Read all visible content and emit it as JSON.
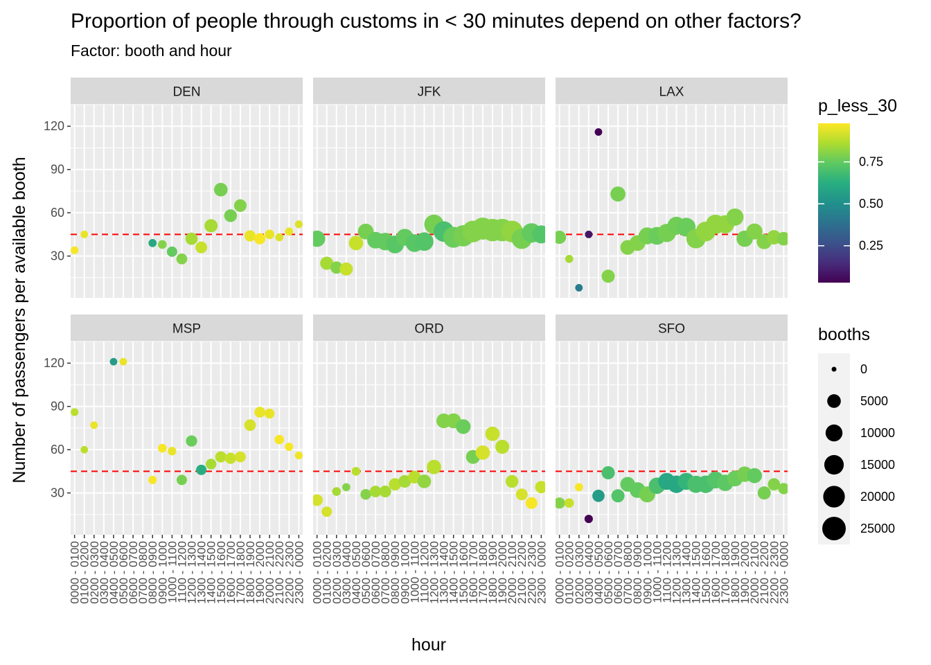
{
  "chart_data": {
    "type": "scatter",
    "title": "Proportion of people through customs in < 30 minutes depend on other factors?",
    "subtitle": "Factor: booth and hour",
    "xlabel": "hour",
    "ylabel": "Number of passengers per available booth",
    "ylim": [
      1,
      135
    ],
    "yticks": [
      30,
      60,
      90,
      120
    ],
    "reference_line": {
      "y": 45,
      "color": "#ff0000",
      "style": "dashed"
    },
    "categories": [
      "0000 - 0100",
      "0100 - 0200",
      "0200 - 0300",
      "0300 - 0400",
      "0400 - 0500",
      "0500 - 0600",
      "0600 - 0700",
      "0700 - 0800",
      "0800 - 0900",
      "0900 - 1000",
      "1000 - 1100",
      "1100 - 1200",
      "1200 - 1300",
      "1300 - 1400",
      "1400 - 1500",
      "1500 - 1600",
      "1600 - 1700",
      "1700 - 1800",
      "1800 - 1900",
      "1900 - 2000",
      "2000 - 2100",
      "2100 - 2200",
      "2200 - 2300",
      "2300 - 0000"
    ],
    "color_scale": {
      "name": "p_less_30",
      "palette": "viridis",
      "range": [
        0.03,
        0.98
      ],
      "breaks": [
        0.25,
        0.5,
        0.75
      ],
      "labels": [
        "0.25",
        "0.50",
        "0.75"
      ]
    },
    "size_scale": {
      "name": "booths",
      "breaks": [
        0,
        5000,
        10000,
        15000,
        20000,
        25000
      ],
      "labels": [
        "0",
        "5000",
        "10000",
        "15000",
        "20000",
        "25000"
      ]
    },
    "grid": true,
    "legend_position": "right",
    "panels": [
      {
        "airport": "DEN",
        "points": [
          [
            0,
            34,
            0.97,
            400
          ],
          [
            1,
            45,
            0.95,
            300
          ],
          [
            8,
            39,
            0.6,
            500
          ],
          [
            9,
            38,
            0.8,
            800
          ],
          [
            10,
            33,
            0.75,
            1800
          ],
          [
            11,
            28,
            0.8,
            2200
          ],
          [
            12,
            42,
            0.85,
            3500
          ],
          [
            13,
            36,
            0.9,
            3000
          ],
          [
            14,
            51,
            0.85,
            4500
          ],
          [
            15,
            76,
            0.78,
            5000
          ],
          [
            16,
            58,
            0.78,
            4000
          ],
          [
            17,
            65,
            0.8,
            3800
          ],
          [
            18,
            44,
            0.95,
            2500
          ],
          [
            19,
            42,
            0.97,
            2500
          ],
          [
            20,
            45,
            0.95,
            1200
          ],
          [
            21,
            43,
            0.93,
            500
          ],
          [
            22,
            47,
            0.95,
            500
          ],
          [
            23,
            52,
            0.93,
            400
          ]
        ]
      },
      {
        "airport": "JFK",
        "points": [
          [
            0,
            42,
            0.75,
            9000
          ],
          [
            1,
            25,
            0.85,
            4500
          ],
          [
            2,
            22,
            0.8,
            3500
          ],
          [
            3,
            21,
            0.9,
            4500
          ],
          [
            4,
            39,
            0.9,
            6000
          ],
          [
            5,
            47,
            0.78,
            8000
          ],
          [
            6,
            41,
            0.75,
            9500
          ],
          [
            7,
            40,
            0.75,
            11000
          ],
          [
            8,
            38,
            0.73,
            11500
          ],
          [
            9,
            43,
            0.75,
            10000
          ],
          [
            10,
            39,
            0.73,
            11500
          ],
          [
            11,
            40,
            0.72,
            13000
          ],
          [
            12,
            52,
            0.78,
            15000
          ],
          [
            13,
            47,
            0.7,
            17000
          ],
          [
            14,
            43,
            0.76,
            18000
          ],
          [
            15,
            44,
            0.78,
            19000
          ],
          [
            16,
            47,
            0.8,
            20000
          ],
          [
            17,
            49,
            0.8,
            21000
          ],
          [
            18,
            48,
            0.8,
            22000
          ],
          [
            19,
            48,
            0.8,
            22000
          ],
          [
            20,
            47,
            0.82,
            20000
          ],
          [
            21,
            42,
            0.78,
            17000
          ],
          [
            22,
            46,
            0.75,
            15000
          ],
          [
            23,
            45,
            0.72,
            12000
          ]
        ]
      },
      {
        "airport": "LAX",
        "points": [
          [
            0,
            43,
            0.78,
            4500
          ],
          [
            1,
            28,
            0.85,
            500
          ],
          [
            2,
            8,
            0.42,
            300
          ],
          [
            3,
            45,
            0.08,
            300
          ],
          [
            4,
            116,
            0.03,
            300
          ],
          [
            5,
            16,
            0.8,
            4500
          ],
          [
            6,
            73,
            0.78,
            7000
          ],
          [
            7,
            36,
            0.8,
            6500
          ],
          [
            8,
            39,
            0.8,
            8000
          ],
          [
            9,
            44,
            0.78,
            10000
          ],
          [
            10,
            44,
            0.76,
            11500
          ],
          [
            11,
            46,
            0.78,
            12500
          ],
          [
            12,
            51,
            0.77,
            12000
          ],
          [
            13,
            50,
            0.76,
            13500
          ],
          [
            14,
            42,
            0.8,
            14500
          ],
          [
            15,
            47,
            0.82,
            15500
          ],
          [
            16,
            52,
            0.82,
            14500
          ],
          [
            17,
            52,
            0.82,
            12000
          ],
          [
            18,
            57,
            0.8,
            10500
          ],
          [
            19,
            42,
            0.78,
            9000
          ],
          [
            20,
            47,
            0.8,
            8500
          ],
          [
            21,
            40,
            0.8,
            7000
          ],
          [
            22,
            43,
            0.82,
            6000
          ],
          [
            23,
            42,
            0.8,
            5000
          ]
        ]
      },
      {
        "airport": "MSP",
        "points": [
          [
            0,
            86,
            0.88,
            400
          ],
          [
            1,
            60,
            0.88,
            300
          ],
          [
            2,
            77,
            0.95,
            300
          ],
          [
            4,
            121,
            0.55,
            300
          ],
          [
            5,
            121,
            0.95,
            300
          ],
          [
            8,
            39,
            0.97,
            600
          ],
          [
            9,
            61,
            0.97,
            800
          ],
          [
            10,
            59,
            0.95,
            700
          ],
          [
            11,
            39,
            0.78,
            1800
          ],
          [
            12,
            66,
            0.76,
            2500
          ],
          [
            13,
            46,
            0.62,
            1800
          ],
          [
            14,
            50,
            0.85,
            2000
          ],
          [
            15,
            55,
            0.88,
            2500
          ],
          [
            16,
            54,
            0.9,
            2500
          ],
          [
            17,
            55,
            0.92,
            2200
          ],
          [
            18,
            77,
            0.92,
            2800
          ],
          [
            19,
            86,
            0.95,
            2200
          ],
          [
            20,
            85,
            0.95,
            1500
          ],
          [
            21,
            67,
            0.97,
            1200
          ],
          [
            22,
            62,
            0.97,
            600
          ],
          [
            23,
            56,
            0.96,
            400
          ]
        ]
      },
      {
        "airport": "ORD",
        "points": [
          [
            0,
            25,
            0.92,
            2800
          ],
          [
            1,
            17,
            0.92,
            1800
          ],
          [
            2,
            31,
            0.85,
            800
          ],
          [
            3,
            34,
            0.8,
            500
          ],
          [
            4,
            45,
            0.88,
            800
          ],
          [
            5,
            29,
            0.8,
            2000
          ],
          [
            6,
            31,
            0.85,
            2800
          ],
          [
            7,
            31,
            0.85,
            3000
          ],
          [
            8,
            36,
            0.88,
            3500
          ],
          [
            9,
            38,
            0.85,
            3800
          ],
          [
            10,
            41,
            0.88,
            4000
          ],
          [
            11,
            38,
            0.82,
            5000
          ],
          [
            12,
            48,
            0.88,
            6000
          ],
          [
            13,
            80,
            0.8,
            6500
          ],
          [
            14,
            80,
            0.8,
            6800
          ],
          [
            15,
            76,
            0.76,
            6500
          ],
          [
            16,
            55,
            0.78,
            5500
          ],
          [
            17,
            58,
            0.92,
            6000
          ],
          [
            18,
            71,
            0.9,
            6000
          ],
          [
            19,
            62,
            0.88,
            5500
          ],
          [
            20,
            38,
            0.88,
            4000
          ],
          [
            21,
            29,
            0.92,
            3000
          ],
          [
            22,
            23,
            0.97,
            3000
          ],
          [
            23,
            34,
            0.9,
            3500
          ]
        ]
      },
      {
        "airport": "SFO",
        "points": [
          [
            0,
            23,
            0.8,
            2500
          ],
          [
            1,
            23,
            0.9,
            1200
          ],
          [
            2,
            34,
            0.97,
            500
          ],
          [
            3,
            12,
            0.03,
            600
          ],
          [
            4,
            28,
            0.55,
            3500
          ],
          [
            5,
            44,
            0.7,
            4500
          ],
          [
            6,
            28,
            0.72,
            4500
          ],
          [
            7,
            36,
            0.75,
            6500
          ],
          [
            8,
            32,
            0.75,
            8000
          ],
          [
            9,
            29,
            0.78,
            8500
          ],
          [
            10,
            35,
            0.7,
            9000
          ],
          [
            11,
            38,
            0.6,
            10000
          ],
          [
            12,
            36,
            0.6,
            11000
          ],
          [
            13,
            38,
            0.65,
            10000
          ],
          [
            14,
            36,
            0.7,
            10500
          ],
          [
            15,
            36,
            0.7,
            11000
          ],
          [
            16,
            39,
            0.72,
            10000
          ],
          [
            17,
            37,
            0.74,
            9000
          ],
          [
            18,
            40,
            0.76,
            8000
          ],
          [
            19,
            43,
            0.78,
            7500
          ],
          [
            20,
            42,
            0.75,
            7000
          ],
          [
            21,
            30,
            0.78,
            4500
          ],
          [
            22,
            36,
            0.8,
            3500
          ],
          [
            23,
            33,
            0.8,
            2500
          ]
        ]
      }
    ]
  }
}
